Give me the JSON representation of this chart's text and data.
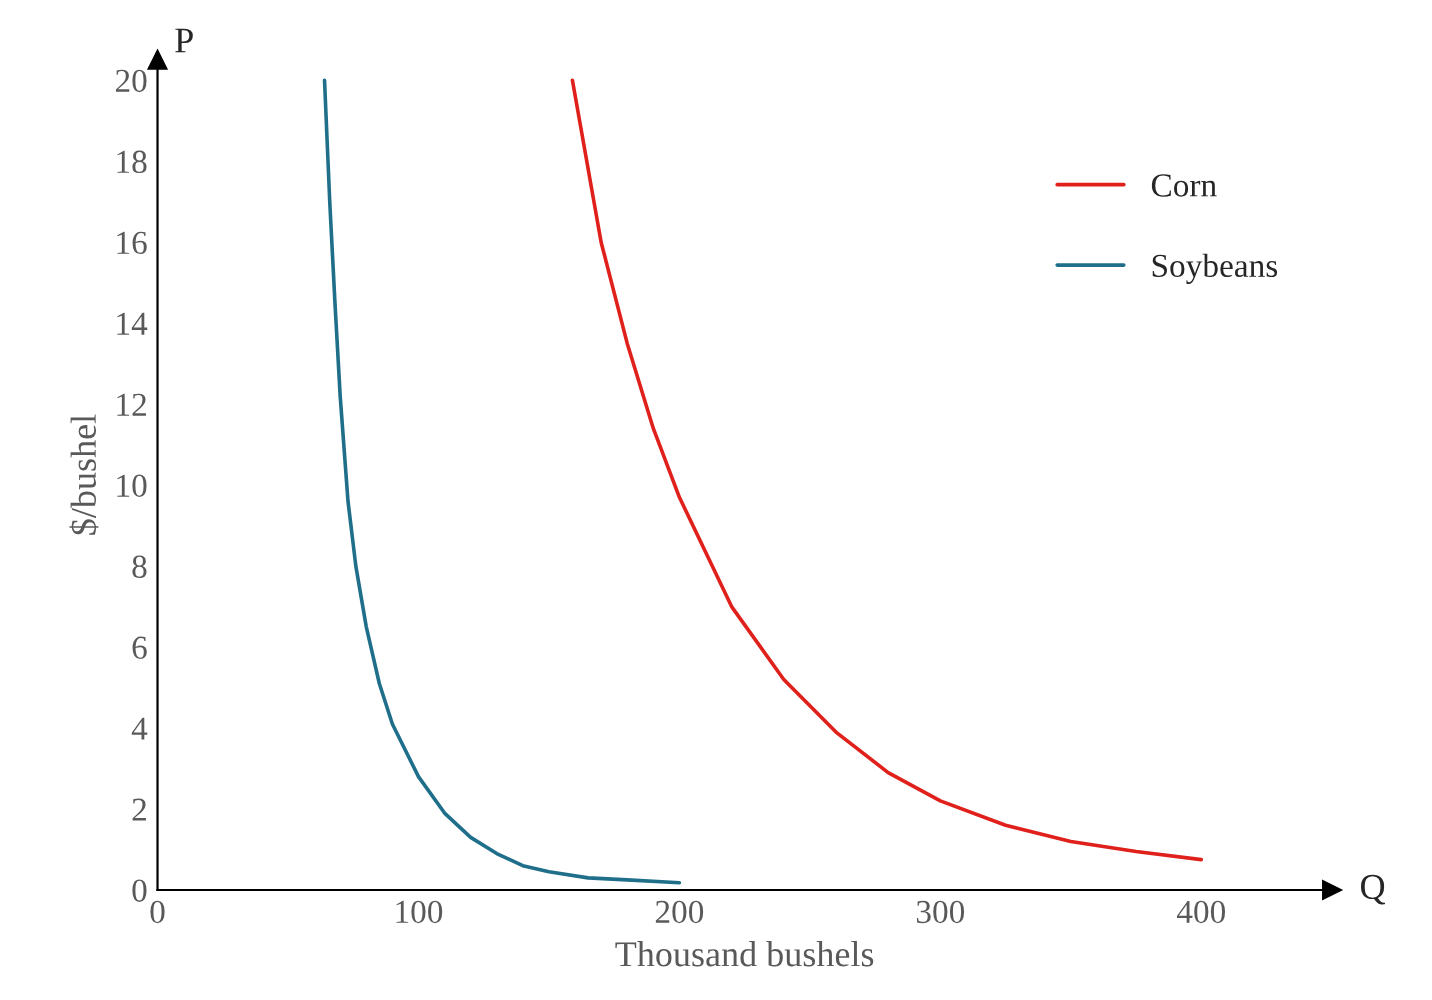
{
  "chart_data": {
    "type": "line",
    "xlabel": "Thousand bushels",
    "ylabel": "$/bushel",
    "annotations": [
      "P",
      "Q"
    ],
    "xlim": [
      0,
      450
    ],
    "xticks": [
      0,
      100,
      200,
      300,
      400
    ],
    "ylim": [
      0,
      20.5
    ],
    "yticks": [
      0,
      2,
      4,
      6,
      8,
      10,
      12,
      14,
      16,
      18,
      20
    ],
    "grid": false,
    "legend": "top right",
    "marker": "none",
    "line_style": "solid",
    "series": [
      {
        "name": "Corn",
        "color": "#e0201b",
        "x": [
          159,
          170,
          180,
          190,
          200,
          220,
          240,
          260,
          280,
          300,
          325,
          350,
          375,
          400
        ],
        "values": [
          20,
          16,
          13.5,
          11.4,
          9.7,
          7,
          5.2,
          3.9,
          2.9,
          2.2,
          1.6,
          1.2,
          0.95,
          0.75
        ]
      },
      {
        "name": "Soybeans",
        "color": "#1f6f8b",
        "x": [
          64,
          66,
          68,
          70,
          73,
          76,
          80,
          85,
          90,
          100,
          110,
          120,
          130,
          140,
          150,
          165,
          180,
          200
        ],
        "values": [
          20,
          17,
          14.5,
          12.2,
          9.6,
          8,
          6.5,
          5.1,
          4.1,
          2.8,
          1.9,
          1.3,
          0.9,
          0.6,
          0.45,
          0.3,
          0.25,
          0.18
        ]
      }
    ]
  }
}
